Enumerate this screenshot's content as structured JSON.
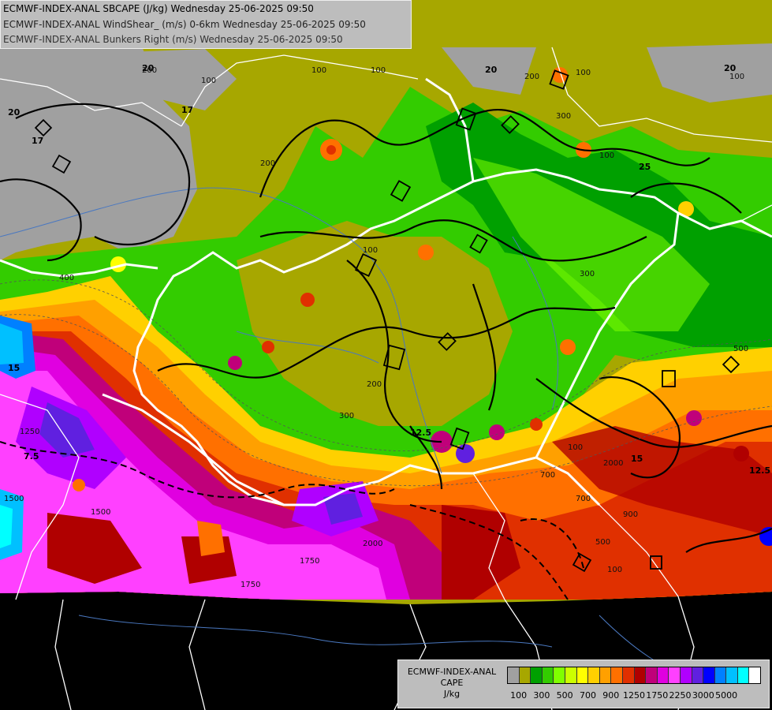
{
  "title_lines": [
    "ECMWF-INDEX-ANAL SBCAPE (J/kg) Wednesday 25-06-2025 09:50",
    "ECMWF-INDEX-ANAL WindShear_ (m/s) 0-6km Wednesday 25-06-2025 09:50",
    "ECMWF-INDEX-ANAL Bunkers Right (m/s) Wednesday 25-06-2025 09:50"
  ],
  "legend": {
    "title_lines": [
      "ECMWF-INDEX-ANAL",
      "CAPE",
      "J/kg"
    ],
    "colors": [
      "#a0a0a0",
      "#a7a700",
      "#00a000",
      "#33cc00",
      "#80ff00",
      "#ccff00",
      "#ffff00",
      "#ffd000",
      "#ffa000",
      "#ff7000",
      "#e03000",
      "#b00000",
      "#c0007a",
      "#e000e0",
      "#ff40ff",
      "#b000ff",
      "#6020e0",
      "#0000ff",
      "#0080ff",
      "#00c0ff",
      "#00ffff",
      "#ffffff"
    ],
    "ticks": [
      "100",
      "300",
      "500",
      "700",
      "900",
      "1250",
      "1750",
      "2250",
      "3000",
      "5000"
    ]
  },
  "contour_labels": [
    {
      "text": "20",
      "kind": "shear"
    },
    {
      "text": "17",
      "kind": "shear"
    },
    {
      "text": "17",
      "kind": "shear"
    },
    {
      "text": "20",
      "kind": "shear"
    },
    {
      "text": "20",
      "kind": "shear"
    },
    {
      "text": "25",
      "kind": "shear"
    },
    {
      "text": "20",
      "kind": "shear"
    },
    {
      "text": "12.5",
      "kind": "shear"
    },
    {
      "text": "15",
      "kind": "shear"
    },
    {
      "text": "7.5",
      "kind": "shear"
    },
    {
      "text": "15",
      "kind": "shear"
    },
    {
      "text": "12.5",
      "kind": "shear"
    },
    {
      "text": "100",
      "kind": "cape"
    },
    {
      "text": "200",
      "kind": "cape"
    },
    {
      "text": "100",
      "kind": "cape"
    },
    {
      "text": "100",
      "kind": "cape"
    },
    {
      "text": "200",
      "kind": "cape"
    },
    {
      "text": "300",
      "kind": "cape"
    },
    {
      "text": "100",
      "kind": "cape"
    },
    {
      "text": "200",
      "kind": "cape"
    },
    {
      "text": "100",
      "kind": "cape"
    },
    {
      "text": "300",
      "kind": "cape"
    },
    {
      "text": "100",
      "kind": "cape"
    },
    {
      "text": "200",
      "kind": "cape"
    },
    {
      "text": "300",
      "kind": "cape"
    },
    {
      "text": "500",
      "kind": "cape"
    },
    {
      "text": "100",
      "kind": "cape"
    },
    {
      "text": "100",
      "kind": "cape"
    },
    {
      "text": "700",
      "kind": "cape"
    },
    {
      "text": "1750",
      "kind": "cape"
    },
    {
      "text": "1750",
      "kind": "cape"
    },
    {
      "text": "2000",
      "kind": "cape"
    },
    {
      "text": "1500",
      "kind": "cape"
    },
    {
      "text": "1250",
      "kind": "cape"
    },
    {
      "text": "700",
      "kind": "cape"
    },
    {
      "text": "500",
      "kind": "cape"
    },
    {
      "text": "100",
      "kind": "cape"
    },
    {
      "text": "900",
      "kind": "cape"
    },
    {
      "text": "2000",
      "kind": "cape"
    },
    {
      "text": "1500",
      "kind": "cape"
    },
    {
      "text": "400",
      "kind": "cape"
    }
  ]
}
